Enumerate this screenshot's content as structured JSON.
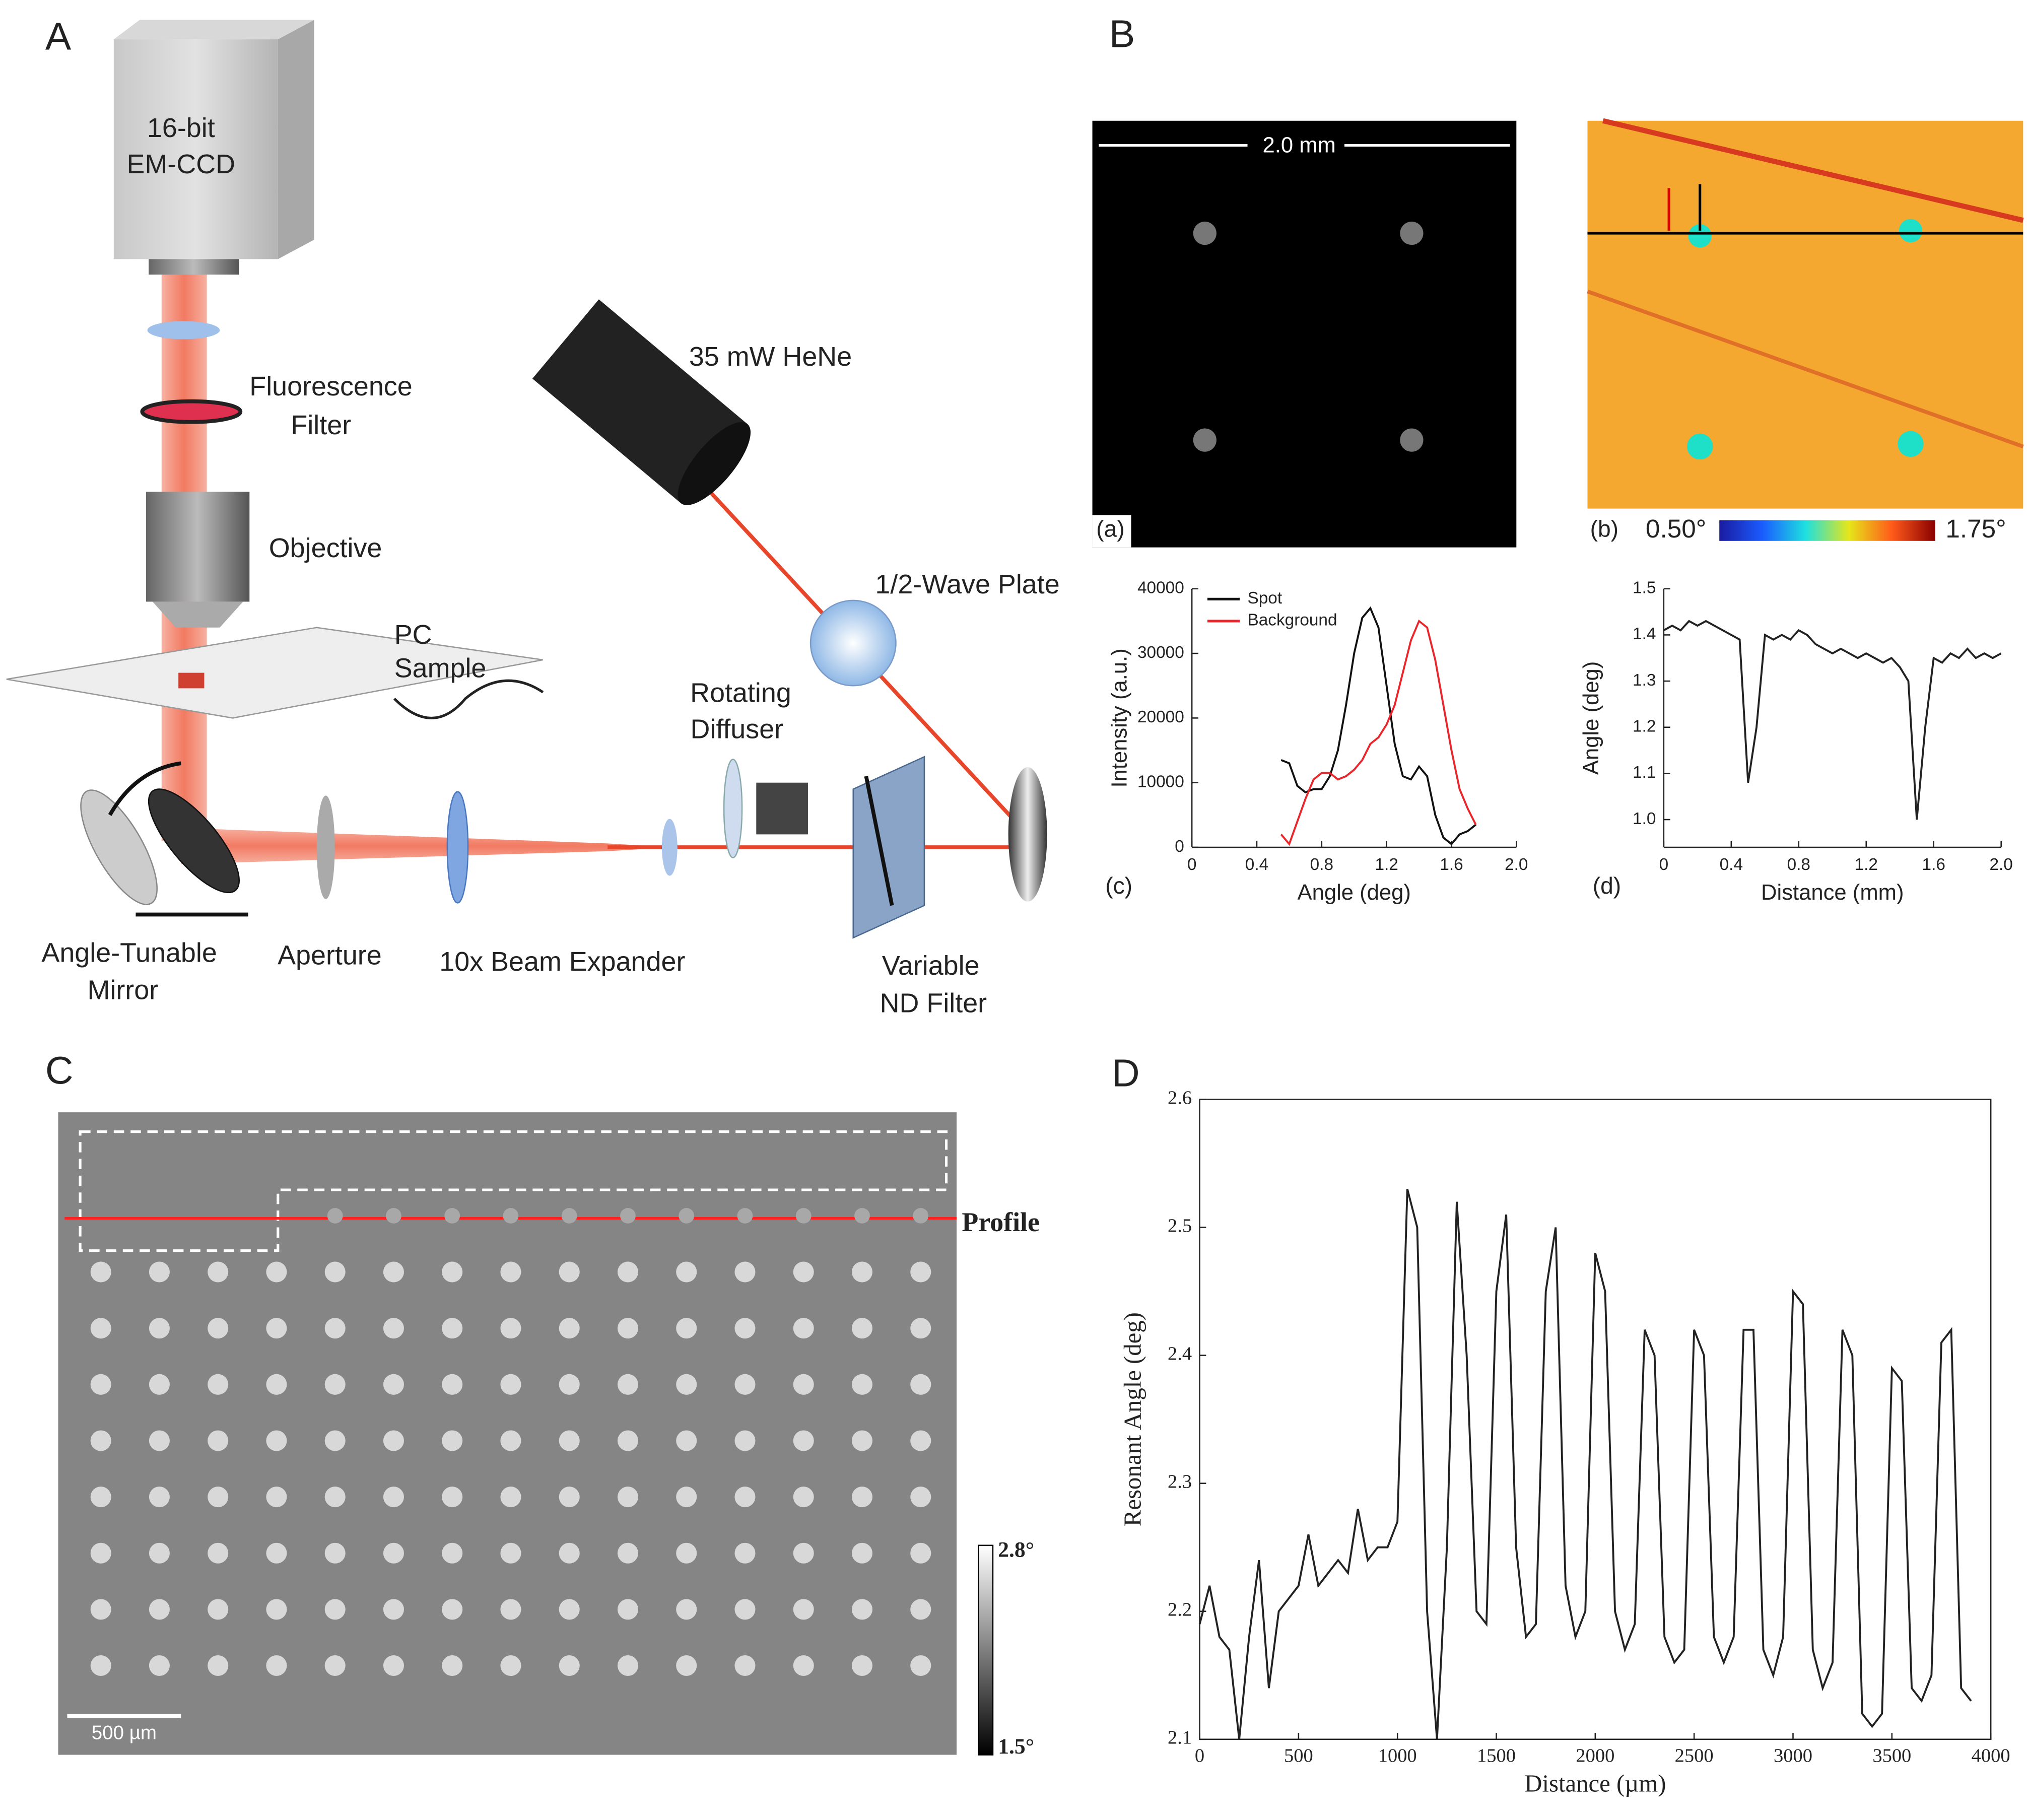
{
  "panel_labels": [
    "A",
    "B",
    "C",
    "D"
  ],
  "diagram_labels": [
    "16-bit",
    "EM-CCD",
    "Fluorescence",
    "Filter",
    "Objective",
    "PC",
    "Sample",
    "35 mW HeNe",
    "1/2-Wave Plate",
    "Rotating",
    "Diffuser",
    "Angle-Tunable",
    "Mirror",
    "Aperture",
    "10x Beam Expander",
    "Variable",
    "ND Filter"
  ],
  "image_a": {
    "label": "(a)",
    "scale": "2.0 mm"
  },
  "image_b": {
    "label": "(b)",
    "colorbar_min": "0.50°",
    "colorbar_max": "1.75°"
  },
  "image_c": {
    "profile": "Profile",
    "scale": "500 µm",
    "colorbar_max": "2.8°",
    "colorbar_min": "1.5°"
  },
  "chart_data": [
    {
      "type": "line",
      "label": "(c)",
      "x_label": "Angle (deg)",
      "y_label": "Intensity (a.u.)",
      "xlim": [
        0,
        2
      ],
      "xticks": [
        0,
        0.4,
        0.8,
        1.2,
        1.6,
        {
          "value": 2,
          "label": "2.0"
        }
      ],
      "ylim": [
        0,
        40000
      ],
      "yticks": [
        0,
        10000,
        20000,
        30000,
        40000
      ],
      "x": [
        0.55,
        0.6,
        0.65,
        0.7,
        0.75,
        0.8,
        0.85,
        0.9,
        0.95,
        1.0,
        1.05,
        1.1,
        1.15,
        1.2,
        1.25,
        1.3,
        1.35,
        1.4,
        1.45,
        1.5,
        1.55,
        1.6,
        1.65,
        1.7,
        1.75
      ],
      "series": [
        {
          "name": "Spot",
          "color": "#111111",
          "values": [
            13500,
            13000,
            9500,
            8500,
            9000,
            9000,
            11000,
            15000,
            22000,
            30000,
            35500,
            37000,
            34000,
            25000,
            16000,
            11000,
            10500,
            12500,
            11000,
            5000,
            1500,
            500,
            2000,
            2500,
            3500
          ]
        },
        {
          "name": "Background",
          "color": "#e8262b",
          "values": [
            2000,
            500,
            4000,
            7500,
            10500,
            11500,
            11500,
            10500,
            11000,
            12000,
            13500,
            16000,
            17000,
            19000,
            22000,
            27000,
            32000,
            35000,
            34000,
            29000,
            22000,
            15000,
            9000,
            6000,
            3500
          ]
        }
      ],
      "legend": "upper-left"
    },
    {
      "type": "line",
      "label": "(d)",
      "x_label": "Distance (mm)",
      "y_label": "Angle (deg)",
      "xlim": [
        0,
        2
      ],
      "xticks": [
        0,
        0.4,
        0.8,
        1.2,
        1.6,
        {
          "value": 2,
          "label": "2.0"
        }
      ],
      "ylim": [
        0.94,
        1.5
      ],
      "yticks": [
        {
          "value": 1,
          "label": "1.0"
        },
        1.1,
        1.2,
        1.3,
        1.4,
        1.5
      ],
      "x": [
        0,
        0.05,
        0.1,
        0.15,
        0.2,
        0.25,
        0.3,
        0.35,
        0.4,
        0.45,
        0.5,
        0.55,
        0.6,
        0.65,
        0.7,
        0.75,
        0.8,
        0.85,
        0.9,
        0.95,
        1.0,
        1.05,
        1.1,
        1.15,
        1.2,
        1.25,
        1.3,
        1.35,
        1.4,
        1.45,
        1.5,
        1.55,
        1.6,
        1.65,
        1.7,
        1.75,
        1.8,
        1.85,
        1.9,
        1.95,
        2.0
      ],
      "series": [
        {
          "color": "#222222",
          "values": [
            1.41,
            1.42,
            1.41,
            1.43,
            1.42,
            1.43,
            1.42,
            1.41,
            1.4,
            1.39,
            1.08,
            1.2,
            1.4,
            1.39,
            1.4,
            1.39,
            1.41,
            1.4,
            1.38,
            1.37,
            1.36,
            1.37,
            1.36,
            1.35,
            1.36,
            1.35,
            1.34,
            1.35,
            1.33,
            1.3,
            1.0,
            1.2,
            1.35,
            1.34,
            1.36,
            1.35,
            1.37,
            1.35,
            1.36,
            1.35,
            1.36
          ]
        }
      ]
    },
    {
      "type": "line",
      "x_label": "Distance (µm)",
      "y_label": "Resonant Angle (deg)",
      "xlim": [
        0,
        4000
      ],
      "xticks": [
        0,
        500,
        1000,
        1500,
        2000,
        2500,
        3000,
        3500,
        4000
      ],
      "ylim": [
        2.1,
        2.6
      ],
      "yticks": [
        2.1,
        2.2,
        2.3,
        2.4,
        2.5,
        2.6
      ],
      "x": [
        0,
        50,
        100,
        150,
        200,
        250,
        300,
        350,
        400,
        450,
        500,
        550,
        600,
        650,
        700,
        750,
        800,
        850,
        900,
        950,
        1000,
        1050,
        1100,
        1150,
        1200,
        1250,
        1300,
        1350,
        1400,
        1450,
        1500,
        1550,
        1600,
        1650,
        1700,
        1750,
        1800,
        1850,
        1900,
        1950,
        2000,
        2050,
        2100,
        2150,
        2200,
        2250,
        2300,
        2350,
        2400,
        2450,
        2500,
        2550,
        2600,
        2650,
        2700,
        2750,
        2800,
        2850,
        2900,
        2950,
        3000,
        3050,
        3100,
        3150,
        3200,
        3250,
        3300,
        3350,
        3400,
        3450,
        3500,
        3550,
        3600,
        3650,
        3700,
        3750,
        3800,
        3850,
        3900
      ],
      "series": [
        {
          "color": "#222222",
          "values": [
            2.19,
            2.22,
            2.18,
            2.17,
            2.1,
            2.18,
            2.24,
            2.14,
            2.2,
            2.21,
            2.22,
            2.26,
            2.22,
            2.23,
            2.24,
            2.23,
            2.28,
            2.24,
            2.25,
            2.25,
            2.27,
            2.53,
            2.5,
            2.2,
            2.1,
            2.25,
            2.52,
            2.4,
            2.2,
            2.19,
            2.45,
            2.51,
            2.25,
            2.18,
            2.19,
            2.45,
            2.5,
            2.22,
            2.18,
            2.2,
            2.48,
            2.45,
            2.2,
            2.17,
            2.19,
            2.42,
            2.4,
            2.18,
            2.16,
            2.17,
            2.42,
            2.4,
            2.18,
            2.16,
            2.18,
            2.42,
            2.42,
            2.17,
            2.15,
            2.18,
            2.45,
            2.44,
            2.17,
            2.14,
            2.16,
            2.42,
            2.4,
            2.12,
            2.11,
            2.12,
            2.39,
            2.38,
            2.14,
            2.13,
            2.15,
            2.41,
            2.42,
            2.14,
            2.13
          ]
        }
      ]
    }
  ]
}
